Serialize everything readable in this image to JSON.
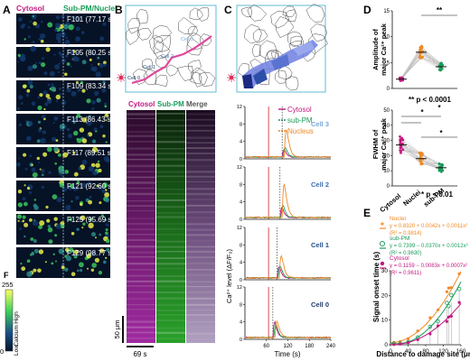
{
  "colors": {
    "cytosol": "#c2187f",
    "subpm": "#1a9c5a",
    "nucleus": "#f08a24",
    "cell3": "#7aa7d8",
    "cell2": "#3d6fb0",
    "cell1": "#23508c",
    "cell0": "#203a66",
    "path": "#e0489a"
  },
  "panel_a": {
    "letter": "A",
    "header_cytosol": "Cytosol",
    "header_subpm": "Sub-PM/Nuclei",
    "frames": [
      {
        "label": "F101 (77.17 s)"
      },
      {
        "label": "F105 (80.25 s)"
      },
      {
        "label": "F109 (83.34 s)"
      },
      {
        "label": "F113 (86.43 s)"
      },
      {
        "label": "F117 (89.51 s)"
      },
      {
        "label": "F121 (92.60 s)"
      },
      {
        "label": "F125 (95.69 s)"
      },
      {
        "label": "F129 (98.77 s)"
      }
    ],
    "cbar_title": "F",
    "cbar_max": "255",
    "cbar_high": "High",
    "cbar_calcium": "Calcium",
    "cbar_low": "Low",
    "cbar_min": "0"
  },
  "panel_b": {
    "letter": "B",
    "cell_labels": [
      "Cell 3",
      "Cell 2",
      "Cell 1",
      "Cell 0"
    ],
    "kymo_cytosol": "Cytosol",
    "kymo_subpm": "Sub-PM",
    "kymo_merge": "Merge",
    "scale_um": "50 μm",
    "scale_s": "69 s"
  },
  "panel_c": {
    "letter": "C",
    "legend": [
      "Cytosol",
      "sub-PM",
      "Nucleus"
    ],
    "y_ticks": [
      "0",
      "4",
      "8",
      "12"
    ],
    "x_ticks": [
      "60",
      "120",
      "180",
      "240"
    ],
    "traces": [
      {
        "name": "Cell 3"
      },
      {
        "name": "Cell 2"
      },
      {
        "name": "Cell 1"
      },
      {
        "name": "Cell 0"
      }
    ],
    "ylabel": "Ca²⁺ level (ΔF/F₀)",
    "xlabel": "Time (s)"
  },
  "panel_d": {
    "letter": "D",
    "top_ylabel_line1": "Amplitude of",
    "top_ylabel_line2": "major Ca²⁺ peak",
    "top_yticks": [
      "0",
      "5",
      "10",
      "15"
    ],
    "top_sig": "**",
    "top_note": "** p < 0.0001",
    "bottom_ylabel_line1": "FWHM of",
    "bottom_ylabel_line2": "major Ca²⁺ peak",
    "bottom_yticks": [
      "0",
      "10",
      "20",
      "30",
      "40",
      "50"
    ],
    "bottom_sig": "*",
    "bottom_note": "* p < 0.01",
    "categories": [
      "Cytosol",
      "Nuclei",
      "sub-PM"
    ]
  },
  "panel_e": {
    "letter": "E",
    "legend": [
      {
        "name": "Nuclei",
        "eq": "y = 0.8320 + 0.0042x + 0.0011x²",
        "r2": "(R² = 0.9814)"
      },
      {
        "name": "sub-PM",
        "eq": "y = 0.7399 − 0.0370x + 0.0012x²",
        "r2": "(R² = 0.9630)"
      },
      {
        "name": "Cytosol",
        "eq": "y = 0.1159 − 0.0083x + 0.0007x²",
        "r2": "(R² = 0.9611)"
      }
    ],
    "ylabel": "Signal onset time (s)",
    "xlabel": "Distance to damage site (μm)",
    "y_ticks": [
      "0",
      "10",
      "20",
      "30"
    ],
    "x_ticks": [
      "0",
      "40",
      "80",
      "120",
      "160"
    ]
  },
  "chart_data": [
    {
      "type": "line",
      "panel": "C",
      "x_range": [
        0,
        240
      ],
      "y_range": [
        0,
        12
      ],
      "xlabel": "Time (s)",
      "ylabel": "Ca²⁺ level (ΔF/F₀)",
      "series_names": [
        "Cytosol",
        "sub-PM",
        "Nucleus"
      ],
      "traces": [
        {
          "cell": "Cell 3",
          "peaks": {
            "Cytosol": 2.0,
            "sub-PM": 2.5,
            "Nucleus": 7.0
          }
        },
        {
          "cell": "Cell 2",
          "peaks": {
            "Cytosol": 2.6,
            "sub-PM": 3.0,
            "Nucleus": 8.5
          }
        },
        {
          "cell": "Cell 1",
          "peaks": {
            "Cytosol": 2.8,
            "sub-PM": 3.2,
            "Nucleus": 5.5
          }
        },
        {
          "cell": "Cell 0",
          "peaks": {
            "Cytosol": 4.0,
            "sub-PM": 3.5,
            "Nucleus": 4.0
          }
        }
      ]
    },
    {
      "type": "scatter",
      "panel": "D-top",
      "categories": [
        "Cytosol",
        "Nuclei",
        "sub-PM"
      ],
      "means": [
        1.8,
        7.0,
        4.2
      ],
      "ylim": [
        0,
        15
      ]
    },
    {
      "type": "scatter",
      "panel": "D-bottom",
      "categories": [
        "Cytosol",
        "Nuclei",
        "sub-PM"
      ],
      "means": [
        27,
        18,
        12
      ],
      "ylim": [
        0,
        50
      ]
    },
    {
      "type": "scatter",
      "panel": "E",
      "xlim": [
        0,
        160
      ],
      "ylim": [
        0,
        30
      ],
      "series": [
        {
          "name": "Nuclei",
          "a": 0.832,
          "b": 0.0042,
          "c": 0.0011
        },
        {
          "name": "sub-PM",
          "a": 0.7399,
          "b": -0.037,
          "c": 0.0012
        },
        {
          "name": "Cytosol",
          "a": 0.1159,
          "b": -0.0083,
          "c": 0.0007
        }
      ]
    }
  ]
}
